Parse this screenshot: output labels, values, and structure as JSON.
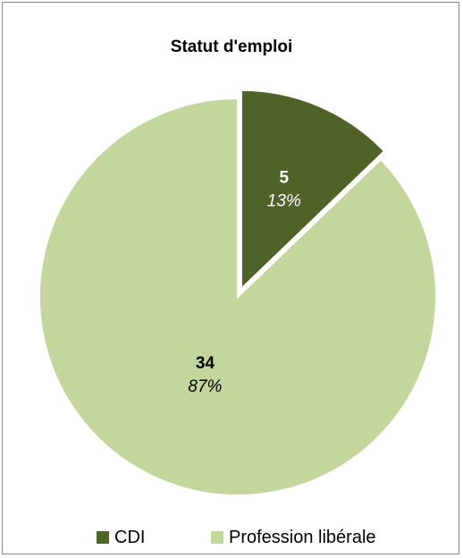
{
  "chart_data": {
    "type": "pie",
    "title": "Statut d'emploi",
    "categories": [
      "CDI",
      "Profession libérale"
    ],
    "values": [
      5,
      34
    ],
    "percent_labels": [
      "13%",
      "87%"
    ],
    "colors": [
      "#4f6228",
      "#c3d69b"
    ],
    "exploded_slice": "CDI",
    "legend_position": "bottom"
  }
}
